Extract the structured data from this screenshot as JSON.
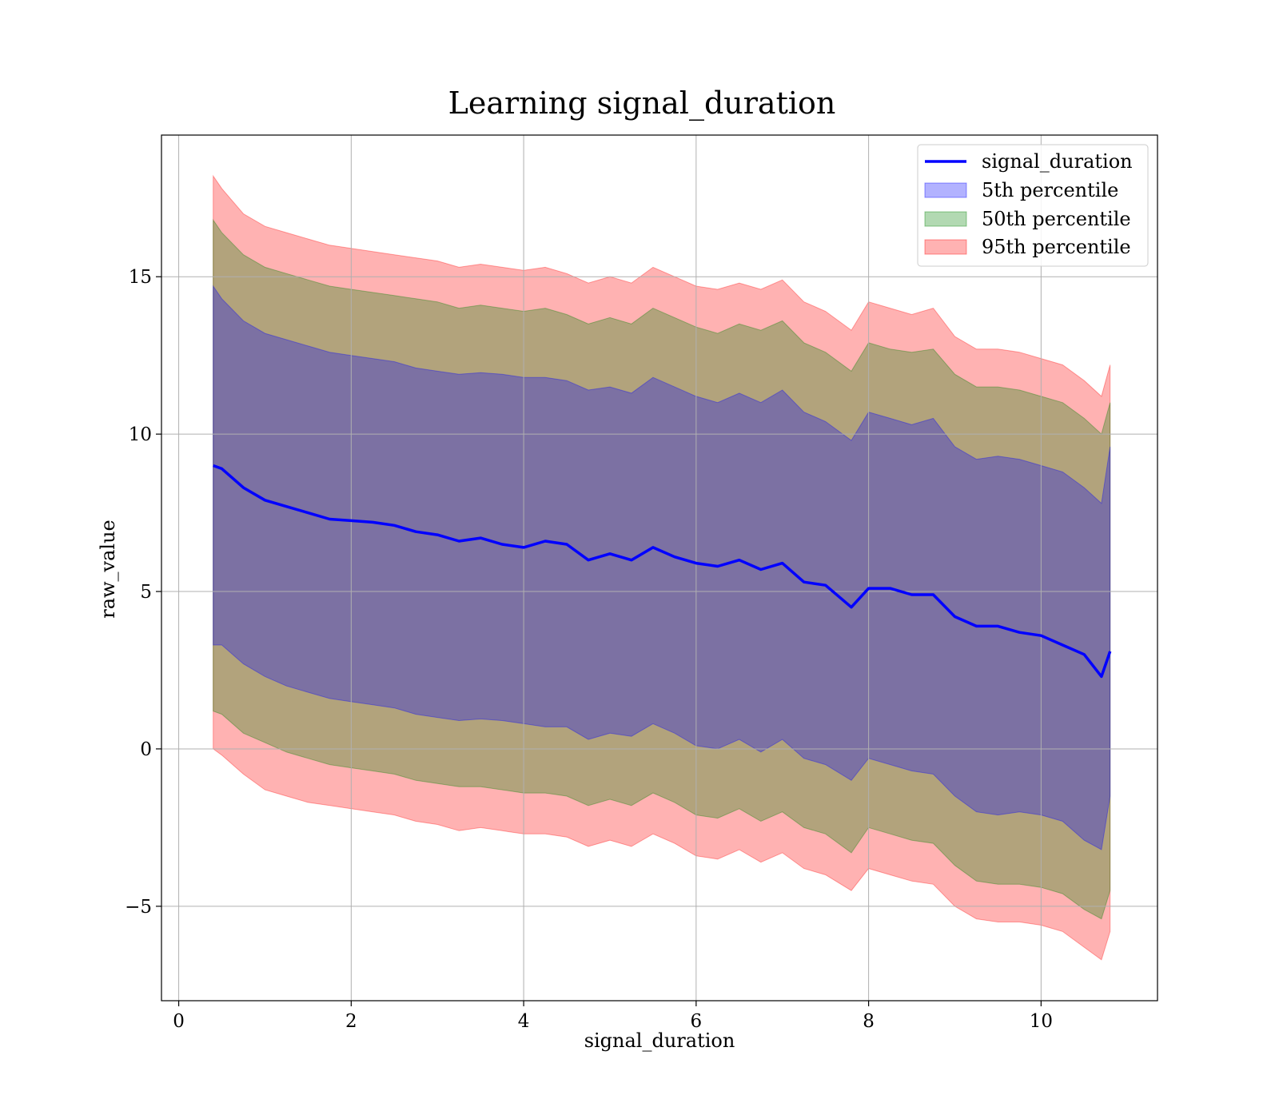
{
  "chart_data": {
    "type": "area",
    "title": "Learning signal_duration",
    "xlabel": "signal_duration",
    "ylabel": "raw_value",
    "xlim": [
      -0.2,
      11.35
    ],
    "ylim": [
      -8,
      19.5
    ],
    "xticks": [
      0,
      2,
      4,
      6,
      8,
      10
    ],
    "xtick_labels": [
      "0",
      "2",
      "4",
      "6",
      "8",
      "10"
    ],
    "yticks": [
      -5,
      0,
      5,
      10,
      15
    ],
    "ytick_labels": [
      "−5",
      "0",
      "5",
      "10",
      "15"
    ],
    "grid": true,
    "legend_position": "top-right",
    "x": [
      0.4,
      0.5,
      0.75,
      1.0,
      1.25,
      1.5,
      1.75,
      2.0,
      2.25,
      2.5,
      2.75,
      3.0,
      3.25,
      3.5,
      3.75,
      4.0,
      4.25,
      4.5,
      4.75,
      5.0,
      5.25,
      5.5,
      5.75,
      6.0,
      6.25,
      6.5,
      6.75,
      7.0,
      7.25,
      7.5,
      7.8,
      8.0,
      8.25,
      8.5,
      8.75,
      9.0,
      9.25,
      9.5,
      9.75,
      10.0,
      10.25,
      10.5,
      10.7,
      10.8
    ],
    "series": [
      {
        "name": "signal_duration",
        "kind": "line",
        "color": "#0000ff",
        "values": [
          9.0,
          8.9,
          8.3,
          7.9,
          7.7,
          7.5,
          7.3,
          7.25,
          7.2,
          7.1,
          6.9,
          6.8,
          6.6,
          6.7,
          6.5,
          6.4,
          6.6,
          6.5,
          6.0,
          6.2,
          6.0,
          6.4,
          6.1,
          5.9,
          5.8,
          6.0,
          5.7,
          5.9,
          5.3,
          5.2,
          4.5,
          5.1,
          5.1,
          4.9,
          4.9,
          4.2,
          3.9,
          3.9,
          3.7,
          3.6,
          3.3,
          3.0,
          2.3,
          3.1
        ]
      },
      {
        "name": "5th percentile",
        "kind": "band",
        "color": "#0000ff",
        "upper": [
          14.7,
          14.3,
          13.6,
          13.2,
          13.0,
          12.8,
          12.6,
          12.5,
          12.4,
          12.3,
          12.1,
          12.0,
          11.9,
          11.95,
          11.9,
          11.8,
          11.8,
          11.7,
          11.4,
          11.5,
          11.3,
          11.8,
          11.5,
          11.2,
          11.0,
          11.3,
          11.0,
          11.4,
          10.7,
          10.4,
          9.8,
          10.7,
          10.5,
          10.3,
          10.5,
          9.6,
          9.2,
          9.3,
          9.2,
          9.0,
          8.8,
          8.3,
          7.8,
          9.6
        ],
        "lower": [
          3.3,
          3.3,
          2.7,
          2.3,
          2.0,
          1.8,
          1.6,
          1.5,
          1.4,
          1.3,
          1.1,
          1.0,
          0.9,
          0.95,
          0.9,
          0.8,
          0.7,
          0.7,
          0.3,
          0.5,
          0.4,
          0.8,
          0.5,
          0.1,
          0.0,
          0.3,
          -0.1,
          0.3,
          -0.3,
          -0.5,
          -1.0,
          -0.3,
          -0.5,
          -0.7,
          -0.8,
          -1.5,
          -2.0,
          -2.1,
          -2.0,
          -2.1,
          -2.3,
          -2.9,
          -3.2,
          -1.5
        ]
      },
      {
        "name": "50th percentile",
        "kind": "band",
        "color": "#008000",
        "upper": [
          16.8,
          16.4,
          15.7,
          15.3,
          15.1,
          14.9,
          14.7,
          14.6,
          14.5,
          14.4,
          14.3,
          14.2,
          14.0,
          14.1,
          14.0,
          13.9,
          14.0,
          13.8,
          13.5,
          13.7,
          13.5,
          14.0,
          13.7,
          13.4,
          13.2,
          13.5,
          13.3,
          13.6,
          12.9,
          12.6,
          12.0,
          12.9,
          12.7,
          12.6,
          12.7,
          11.9,
          11.5,
          11.5,
          11.4,
          11.2,
          11.0,
          10.5,
          10.0,
          11.0
        ],
        "lower": [
          1.2,
          1.1,
          0.5,
          0.2,
          -0.1,
          -0.3,
          -0.5,
          -0.6,
          -0.7,
          -0.8,
          -1.0,
          -1.1,
          -1.2,
          -1.2,
          -1.3,
          -1.4,
          -1.4,
          -1.5,
          -1.8,
          -1.6,
          -1.8,
          -1.4,
          -1.7,
          -2.1,
          -2.2,
          -1.9,
          -2.3,
          -2.0,
          -2.5,
          -2.7,
          -3.3,
          -2.5,
          -2.7,
          -2.9,
          -3.0,
          -3.7,
          -4.2,
          -4.3,
          -4.3,
          -4.4,
          -4.6,
          -5.1,
          -5.4,
          -4.5
        ]
      },
      {
        "name": "95th percentile",
        "kind": "band",
        "color": "#ff0000",
        "upper": [
          18.2,
          17.8,
          17.0,
          16.6,
          16.4,
          16.2,
          16.0,
          15.9,
          15.8,
          15.7,
          15.6,
          15.5,
          15.3,
          15.4,
          15.3,
          15.2,
          15.3,
          15.1,
          14.8,
          15.0,
          14.8,
          15.3,
          15.0,
          14.7,
          14.6,
          14.8,
          14.6,
          14.9,
          14.2,
          13.9,
          13.3,
          14.2,
          14.0,
          13.8,
          14.0,
          13.1,
          12.7,
          12.7,
          12.6,
          12.4,
          12.2,
          11.7,
          11.2,
          12.2
        ],
        "lower": [
          0.0,
          -0.2,
          -0.8,
          -1.3,
          -1.5,
          -1.7,
          -1.8,
          -1.9,
          -2.0,
          -2.1,
          -2.3,
          -2.4,
          -2.6,
          -2.5,
          -2.6,
          -2.7,
          -2.7,
          -2.8,
          -3.1,
          -2.9,
          -3.1,
          -2.7,
          -3.0,
          -3.4,
          -3.5,
          -3.2,
          -3.6,
          -3.3,
          -3.8,
          -4.0,
          -4.5,
          -3.8,
          -4.0,
          -4.2,
          -4.3,
          -5.0,
          -5.4,
          -5.5,
          -5.5,
          -5.6,
          -5.8,
          -6.3,
          -6.7,
          -5.8
        ]
      }
    ]
  },
  "legend": {
    "items": [
      {
        "label": "signal_duration",
        "kind": "line",
        "color": "#0000ff"
      },
      {
        "label": "5th percentile",
        "kind": "patch",
        "color": "#0000ff"
      },
      {
        "label": "50th percentile",
        "kind": "patch",
        "color": "#008000"
      },
      {
        "label": "95th percentile",
        "kind": "patch",
        "color": "#ff0000"
      }
    ]
  },
  "colors": {
    "band_5th": "#0000ff",
    "band_50th": "#008000",
    "band_95th": "#ff0000",
    "line": "#0000ff",
    "grid": "#b0b0b0"
  }
}
